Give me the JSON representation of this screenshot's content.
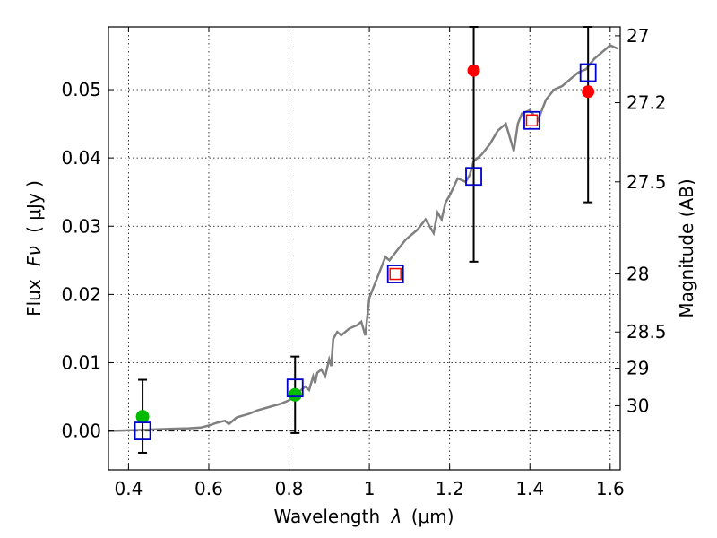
{
  "chart_data": {
    "type": "scatter",
    "xlabel": "Wavelength",
    "xlabel_symbol": "λ",
    "xlabel_unit": "(μm)",
    "ylabel": "Flux",
    "ylabel_symbol": "Fν",
    "ylabel_unit": "( μJy )",
    "y2label": "Magnitude (AB)",
    "xlim": [
      0.35,
      1.625
    ],
    "ylim": [
      -0.0057,
      0.0592
    ],
    "x_ticks": [
      0.4,
      0.6,
      0.8,
      1.0,
      1.2,
      1.4,
      1.6
    ],
    "x_tick_labels": [
      "0.4",
      "0.6",
      "0.8",
      "1",
      "1.2",
      "1.4",
      "1.6"
    ],
    "y_ticks": [
      0.0,
      0.01,
      0.02,
      0.03,
      0.04,
      0.05
    ],
    "y_tick_labels": [
      "0.00",
      "0.01",
      "0.02",
      "0.03",
      "0.04",
      "0.05"
    ],
    "y2_ticks": [
      {
        "label": "27",
        "flux": 0.0579
      },
      {
        "label": "27.2",
        "flux": 0.0481
      },
      {
        "label": "27.5",
        "flux": 0.0365
      },
      {
        "label": "28",
        "flux": 0.023
      },
      {
        "label": "28.5",
        "flux": 0.0145
      },
      {
        "label": "29",
        "flux": 0.0092
      },
      {
        "label": "30",
        "flux": 0.0037
      }
    ],
    "grid": true,
    "zero_line": true,
    "colors": {
      "model": "#808080",
      "detection": "#ff0000",
      "upper_limit": "#00bb00",
      "model_point": "#0000cc",
      "errorbar": "#000000"
    },
    "model_sed": {
      "x": [
        0.35,
        0.4,
        0.45,
        0.5,
        0.55,
        0.58,
        0.6,
        0.62,
        0.64,
        0.65,
        0.67,
        0.7,
        0.72,
        0.75,
        0.78,
        0.8,
        0.82,
        0.84,
        0.85,
        0.86,
        0.865,
        0.87,
        0.88,
        0.89,
        0.9,
        0.905,
        0.91,
        0.92,
        0.93,
        0.95,
        0.97,
        0.98,
        0.99,
        1.0,
        1.02,
        1.04,
        1.05,
        1.07,
        1.09,
        1.1,
        1.12,
        1.14,
        1.16,
        1.17,
        1.18,
        1.19,
        1.2,
        1.22,
        1.24,
        1.25,
        1.26,
        1.28,
        1.3,
        1.32,
        1.34,
        1.36,
        1.37,
        1.38,
        1.4,
        1.42,
        1.44,
        1.46,
        1.48,
        1.5,
        1.52,
        1.54,
        1.56,
        1.58,
        1.6,
        1.62
      ],
      "y": [
        0.0,
        0.0001,
        0.0002,
        0.0003,
        0.0004,
        0.0005,
        0.0008,
        0.0012,
        0.0015,
        0.001,
        0.002,
        0.0025,
        0.003,
        0.0035,
        0.004,
        0.0045,
        0.0055,
        0.0065,
        0.006,
        0.008,
        0.007,
        0.0085,
        0.009,
        0.008,
        0.0105,
        0.0095,
        0.0135,
        0.0145,
        0.014,
        0.015,
        0.0155,
        0.016,
        0.014,
        0.0195,
        0.0225,
        0.0255,
        0.025,
        0.0265,
        0.028,
        0.0285,
        0.0295,
        0.031,
        0.029,
        0.032,
        0.031,
        0.0335,
        0.0345,
        0.037,
        0.0365,
        0.0375,
        0.0395,
        0.0405,
        0.042,
        0.044,
        0.045,
        0.041,
        0.045,
        0.0465,
        0.047,
        0.0455,
        0.0485,
        0.05,
        0.0505,
        0.0515,
        0.0525,
        0.053,
        0.0545,
        0.0555,
        0.0565,
        0.056
      ]
    },
    "model_points": {
      "x": [
        0.435,
        0.815,
        1.065,
        1.26,
        1.405,
        1.545
      ],
      "y": [
        0.0,
        0.0063,
        0.023,
        0.0373,
        0.0455,
        0.0525
      ]
    },
    "detections": {
      "x": [
        1.065,
        1.26,
        1.405,
        1.545
      ],
      "y": [
        0.023,
        0.0528,
        0.0455,
        0.0497
      ],
      "err_low": [
        null,
        0.0248,
        null,
        0.0335
      ],
      "err_high": [
        null,
        0.0592,
        null,
        0.0592
      ]
    },
    "upper_limits": {
      "x": [
        0.435,
        0.815
      ],
      "y": [
        0.0021,
        0.0053
      ],
      "err_low": [
        -0.0032,
        -0.0003
      ],
      "err_high": [
        0.0075,
        0.0109
      ]
    }
  }
}
